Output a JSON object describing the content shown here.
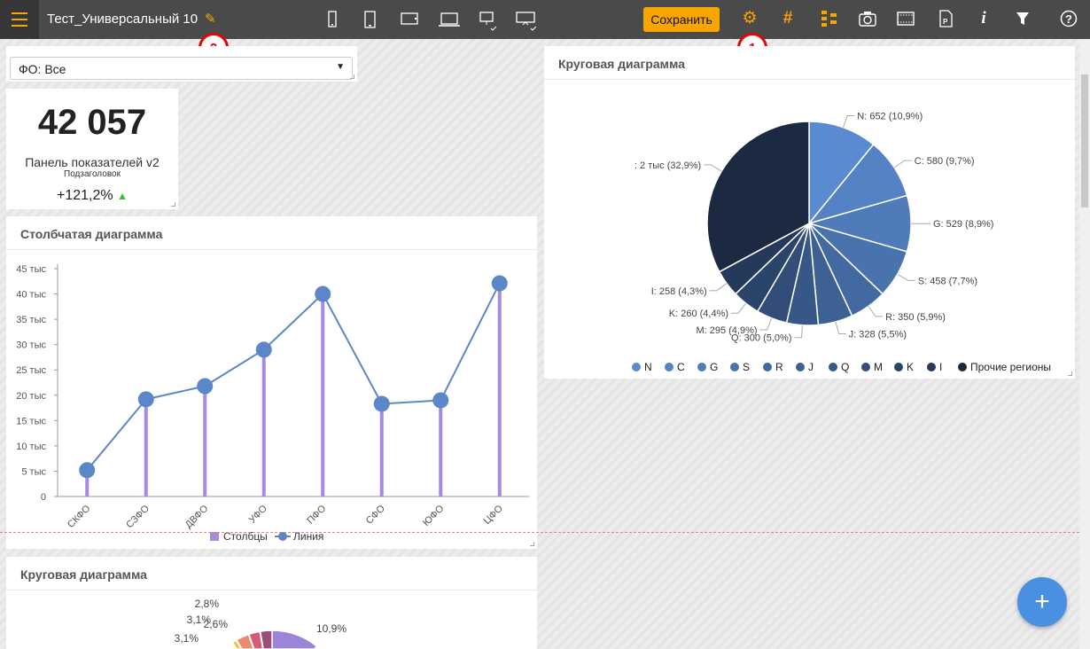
{
  "header": {
    "title": "Тест_Универсальный 10",
    "save_label": "Сохранить",
    "accent": "#f7a600",
    "device_icons": [
      "phone-small-icon",
      "phone-icon",
      "tablet-icon",
      "laptop-icon",
      "desktop-check-icon",
      "projector-check-icon"
    ],
    "tool_icons": [
      "gear-icon",
      "grid-hash-icon",
      "hierarchy-icon",
      "camera-icon",
      "film-icon",
      "pdf-file-icon",
      "info-icon",
      "filter-icon",
      "help-icon"
    ]
  },
  "badges": [
    "1",
    "2"
  ],
  "filter": {
    "label": "ФО: Все"
  },
  "kpi": {
    "value": "42 057",
    "title": "Панель показателей v2",
    "subtitle": "Подзаголовок",
    "change": "+121,2%",
    "trend": "up"
  },
  "bar_chart": {
    "title": "Столбчатая диаграмма",
    "chart_data": {
      "type": "bar+line",
      "categories": [
        "СКФО",
        "СЗФО",
        "ДВФО",
        "УФО",
        "ПФО",
        "СФО",
        "ЮФО",
        "ЦФО"
      ],
      "series": [
        {
          "name": "Столбцы",
          "type": "bar",
          "color": "#a58be0",
          "values": [
            5200,
            19200,
            21800,
            29000,
            40000,
            18300,
            19000,
            42100
          ]
        },
        {
          "name": "Линия",
          "type": "line",
          "color": "#5b86c8",
          "values": [
            5200,
            19200,
            21800,
            29000,
            40000,
            18300,
            19000,
            42100
          ]
        }
      ],
      "ylim": [
        0,
        45000
      ],
      "yticks": [
        "0",
        "5 тыс",
        "10 тыс",
        "15 тыс",
        "20 тыс",
        "25 тыс",
        "30 тыс",
        "35 тыс",
        "40 тыс",
        "45 тыс"
      ],
      "legend": "bottom"
    }
  },
  "pie_chart": {
    "title": "Круговая диаграмма",
    "chart_data": {
      "type": "pie",
      "legend": "bottom",
      "slices": [
        {
          "name": "N",
          "value": 652,
          "label": "N: 652 (10,9%)",
          "pct": 10.9
        },
        {
          "name": "C",
          "value": 580,
          "label": "C: 580 (9,7%)",
          "pct": 9.7
        },
        {
          "name": "G",
          "value": 529,
          "label": "G: 529 (8,9%)",
          "pct": 8.9
        },
        {
          "name": "S",
          "value": 458,
          "label": "S: 458 (7,7%)",
          "pct": 7.7
        },
        {
          "name": "R",
          "value": 350,
          "label": "R: 350 (5,9%)",
          "pct": 5.9
        },
        {
          "name": "J",
          "value": 328,
          "label": "J: 328 (5,5%)",
          "pct": 5.5
        },
        {
          "name": "Q",
          "value": 300,
          "label": "Q: 300 (5,0%)",
          "pct": 5.0
        },
        {
          "name": "M",
          "value": 295,
          "label": "M: 295 (4,9%)",
          "pct": 4.9
        },
        {
          "name": "K",
          "value": 260,
          "label": "K: 260 (4,4%)",
          "pct": 4.4
        },
        {
          "name": "I",
          "value": 258,
          "label": "I: 258 (4,3%)",
          "pct": 4.3
        },
        {
          "name": "Прочие регионы",
          "value": 2000,
          "label": ": 2 тыс (32,9%)",
          "pct": 32.9
        }
      ],
      "colors": [
        "#5a8ad0",
        "#5482c4",
        "#4f7bb9",
        "#4973ad",
        "#436aa0",
        "#3d6193",
        "#375786",
        "#314d78",
        "#2b4469",
        "#253a5a",
        "#1b2a40"
      ]
    }
  },
  "pie_chart2": {
    "title": "Круговая диаграмма",
    "chart_data": {
      "type": "pie",
      "labels_visible": [
        "10,9%",
        "2,6%",
        "2,8%",
        "3,1%",
        "3,1%"
      ]
    }
  },
  "fab": {
    "label": "+"
  }
}
